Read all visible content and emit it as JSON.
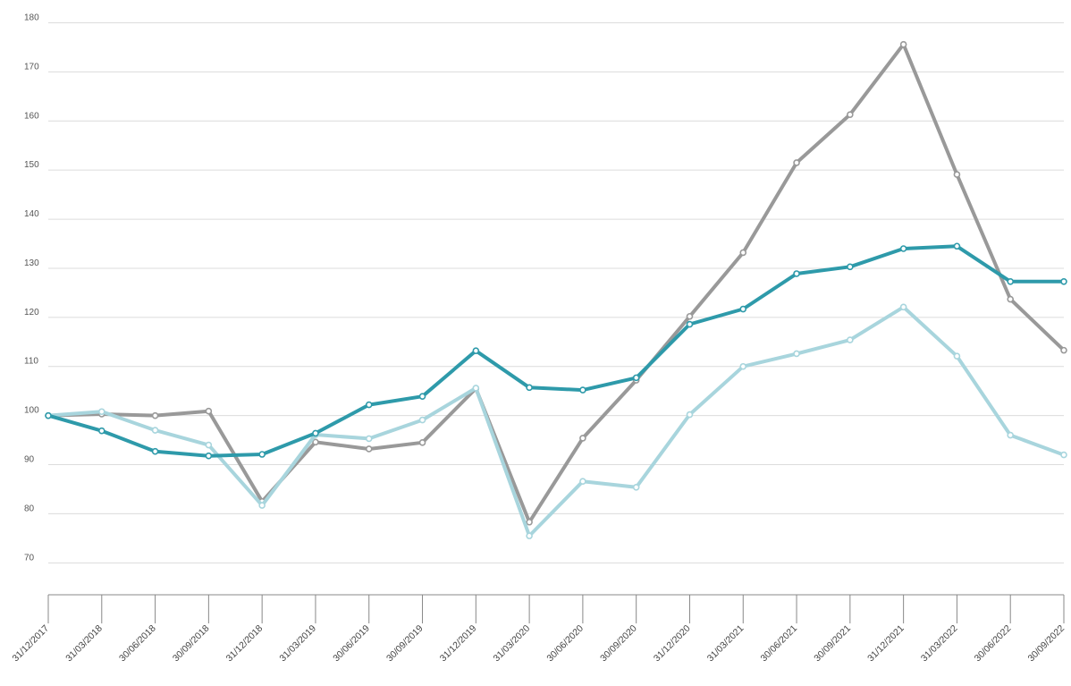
{
  "chart_data": {
    "type": "line",
    "x": [
      "31/12/2017",
      "31/03/2018",
      "30/06/2018",
      "30/09/2018",
      "31/12/2018",
      "31/03/2019",
      "30/06/2019",
      "30/09/2019",
      "31/12/2019",
      "31/03/2020",
      "30/06/2020",
      "30/09/2020",
      "31/12/2020",
      "31/03/2021",
      "30/06/2021",
      "30/09/2021",
      "31/12/2021",
      "31/03/2022",
      "30/06/2022",
      "30/09/2022"
    ],
    "y_ticks": [
      70,
      80,
      90,
      100,
      110,
      120,
      130,
      140,
      150,
      160,
      170,
      180
    ],
    "ylim": [
      63.5,
      181
    ],
    "grid": true,
    "series": [
      {
        "color": "#999999",
        "values": [
          100,
          100.3,
          100,
          100.9,
          82.5,
          94.6,
          93.2,
          94.5,
          105.5,
          78.3,
          95.4,
          107.2,
          120.2,
          133.2,
          151.5,
          161.3,
          175.6,
          149.1,
          123.7,
          113.3
        ]
      },
      {
        "color": "#a8d5dd",
        "values": [
          100,
          100.8,
          97,
          94,
          81.7,
          96.1,
          95.3,
          99.1,
          105.6,
          75.5,
          86.6,
          85.4,
          100.2,
          110,
          112.6,
          115.4,
          122.1,
          112.1,
          96,
          92
        ]
      },
      {
        "color": "#2e9aaa",
        "values": [
          100,
          96.9,
          92.7,
          91.8,
          92.1,
          96.4,
          102.2,
          103.9,
          113.2,
          105.7,
          105.2,
          107.7,
          118.6,
          121.7,
          128.9,
          130.3,
          134,
          134.5,
          127.3,
          127.3
        ]
      }
    ]
  }
}
